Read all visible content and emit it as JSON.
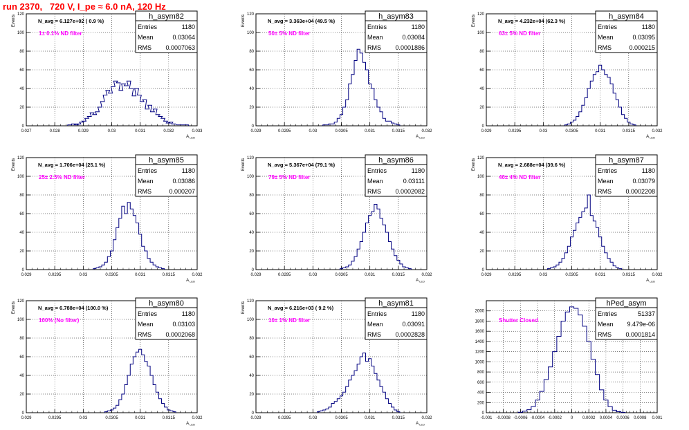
{
  "run_title": "run 2370,   720 V, I_pe ≈ 6.0 nA, 120 Hz",
  "colors": {
    "hist_line": "#000080",
    "annotation": "#ff00ff",
    "title_text": "#ff0000",
    "grid": "#000000"
  },
  "stat_labels": {
    "entries": "Entries",
    "mean": "Mean",
    "rms": "RMS"
  },
  "chart_data": [
    {
      "type": "histogram",
      "name": "h_asym82",
      "title": "N_avg = 6.127e+02 ( 0.9 %)",
      "annotation": "1± 0.1% ND filter",
      "stats": {
        "entries": "1180",
        "mean": "0.03064",
        "rms": "0.0007063"
      },
      "xlabel": "A_LED",
      "ylabel": "Events",
      "grid": true,
      "xlim": [
        0.027,
        0.0335
      ],
      "ylim": [
        0,
        120
      ],
      "xticks": [
        "0.027",
        "0.028",
        "0.029",
        "0.03",
        "0.031",
        "0.032",
        "0.033"
      ],
      "yticks": [
        "0",
        "20",
        "40",
        "60",
        "80",
        "100",
        "120"
      ],
      "bins": {
        "x": [
          0.02865,
          0.0288,
          0.0289,
          0.029,
          0.0291,
          0.0292,
          0.0293,
          0.0294,
          0.0295,
          0.0296,
          0.0297,
          0.0298,
          0.0299,
          0.03,
          0.0301,
          0.0302,
          0.0303,
          0.0304,
          0.0305,
          0.0306,
          0.0307,
          0.0308,
          0.0309,
          0.031,
          0.0311,
          0.0312,
          0.0313,
          0.0314,
          0.0315,
          0.0316,
          0.0317,
          0.0318,
          0.0319,
          0.032,
          0.0321,
          0.0322,
          0.0323,
          0.0324,
          0.0325,
          0.0326,
          0.0328,
          0.0331
        ],
        "y": [
          1,
          2,
          1,
          2,
          4,
          5,
          8,
          10,
          14,
          12,
          15,
          20,
          26,
          33,
          38,
          35,
          42,
          48,
          46,
          38,
          45,
          43,
          48,
          40,
          32,
          40,
          33,
          26,
          28,
          18,
          22,
          15,
          18,
          12,
          10,
          8,
          5,
          3,
          4,
          2,
          1,
          1
        ]
      }
    },
    {
      "type": "histogram",
      "name": "h_asym83",
      "title": "N_avg = 3.363e+04 (49.5 %)",
      "annotation": "50± 5% ND filter",
      "stats": {
        "entries": "1180",
        "mean": "0.03084",
        "rms": "0.0001886"
      },
      "xlabel": "A_LED",
      "ylabel": "Events",
      "grid": true,
      "xlim": [
        0.029,
        0.032
      ],
      "ylim": [
        0,
        120
      ],
      "xticks": [
        "0.029",
        "0.0295",
        "0.03",
        "0.0305",
        "0.031",
        "0.0315",
        "0.032"
      ],
      "yticks": [
        "0",
        "20",
        "40",
        "60",
        "80",
        "100",
        "120"
      ],
      "bins": {
        "x": [
          0.0302,
          0.03025,
          0.0303,
          0.03035,
          0.0304,
          0.03045,
          0.0305,
          0.03055,
          0.0306,
          0.03065,
          0.0307,
          0.03075,
          0.0308,
          0.03085,
          0.0309,
          0.03095,
          0.031,
          0.03105,
          0.0311,
          0.03115,
          0.0312,
          0.03125,
          0.0313,
          0.03135,
          0.0314,
          0.03145,
          0.0315
        ],
        "y": [
          1,
          1,
          2,
          2,
          4,
          8,
          12,
          20,
          28,
          45,
          55,
          70,
          82,
          78,
          68,
          60,
          45,
          40,
          28,
          20,
          15,
          8,
          5,
          5,
          3,
          2,
          1
        ]
      }
    },
    {
      "type": "histogram",
      "name": "h_asym84",
      "title": "N_avg = 4.232e+04 (62.3 %)",
      "annotation": "63± 5% ND filter",
      "stats": {
        "entries": "1180",
        "mean": "0.03095",
        "rms": "0.000215"
      },
      "xlabel": "A_LED",
      "ylabel": "Events",
      "grid": true,
      "xlim": [
        0.029,
        0.032
      ],
      "ylim": [
        0,
        120
      ],
      "xticks": [
        "0.029",
        "0.0295",
        "0.03",
        "0.0305",
        "0.031",
        "0.0315",
        "0.032"
      ],
      "yticks": [
        "0",
        "20",
        "40",
        "60",
        "80",
        "100",
        "120"
      ],
      "bins": {
        "x": [
          0.0304,
          0.03045,
          0.0305,
          0.03055,
          0.0306,
          0.03065,
          0.0307,
          0.03075,
          0.0308,
          0.03085,
          0.0309,
          0.03095,
          0.031,
          0.03105,
          0.0311,
          0.03115,
          0.0312,
          0.03125,
          0.0313,
          0.03135,
          0.0314,
          0.03145,
          0.0315,
          0.03155,
          0.0316
        ],
        "y": [
          1,
          2,
          4,
          6,
          10,
          15,
          22,
          30,
          40,
          48,
          55,
          58,
          65,
          60,
          55,
          52,
          45,
          35,
          28,
          20,
          12,
          8,
          4,
          2,
          1
        ]
      }
    },
    {
      "type": "histogram",
      "name": "h_asym85",
      "title": "N_avg = 1.706e+04 (25.1 %)",
      "annotation": "25± 2.5% ND filter",
      "stats": {
        "entries": "1180",
        "mean": "0.03086",
        "rms": "0.000207"
      },
      "xlabel": "A_LED",
      "ylabel": "Events",
      "grid": true,
      "xlim": [
        0.029,
        0.032
      ],
      "ylim": [
        0,
        120
      ],
      "xticks": [
        "0.029",
        "0.0295",
        "0.03",
        "0.0305",
        "0.031",
        "0.0315",
        "0.032"
      ],
      "yticks": [
        "0",
        "20",
        "40",
        "60",
        "80",
        "100",
        "120"
      ],
      "bins": {
        "x": [
          0.0302,
          0.03025,
          0.0303,
          0.03035,
          0.0304,
          0.03045,
          0.0305,
          0.03055,
          0.0306,
          0.03065,
          0.0307,
          0.03075,
          0.0308,
          0.03085,
          0.0309,
          0.03095,
          0.031,
          0.03105,
          0.0311,
          0.03115,
          0.0312,
          0.03125,
          0.0313,
          0.03135,
          0.0314
        ],
        "y": [
          1,
          2,
          3,
          5,
          8,
          14,
          20,
          32,
          45,
          55,
          68,
          60,
          72,
          65,
          58,
          50,
          38,
          25,
          20,
          12,
          8,
          5,
          3,
          2,
          1
        ]
      }
    },
    {
      "type": "histogram",
      "name": "h_asym86",
      "title": "N_avg = 5.367e+04 (79.1 %)",
      "annotation": "79± 5% ND filter",
      "stats": {
        "entries": "1180",
        "mean": "0.03111",
        "rms": "0.0002082"
      },
      "xlabel": "A_LED",
      "ylabel": "Events",
      "grid": true,
      "xlim": [
        0.029,
        0.032
      ],
      "ylim": [
        0,
        120
      ],
      "xticks": [
        "0.029",
        "0.0295",
        "0.03",
        "0.0305",
        "0.031",
        "0.0315",
        "0.032"
      ],
      "yticks": [
        "0",
        "20",
        "40",
        "60",
        "80",
        "100",
        "120"
      ],
      "bins": {
        "x": [
          0.0305,
          0.03055,
          0.0306,
          0.03065,
          0.0307,
          0.03075,
          0.0308,
          0.03085,
          0.0309,
          0.03095,
          0.031,
          0.03105,
          0.0311,
          0.03115,
          0.0312,
          0.03125,
          0.0313,
          0.03135,
          0.0314,
          0.03145,
          0.0315,
          0.03155,
          0.0316,
          0.03165,
          0.0317
        ],
        "y": [
          1,
          2,
          3,
          5,
          9,
          14,
          22,
          30,
          40,
          50,
          58,
          62,
          70,
          65,
          55,
          48,
          40,
          30,
          22,
          15,
          10,
          6,
          3,
          2,
          1
        ]
      }
    },
    {
      "type": "histogram",
      "name": "h_asym87",
      "title": "N_avg = 2.688e+04 (39.6 %)",
      "annotation": "40± 4% ND filter",
      "stats": {
        "entries": "1180",
        "mean": "0.03079",
        "rms": "0.0002208"
      },
      "xlabel": "A_LED",
      "ylabel": "Events",
      "grid": true,
      "xlim": [
        0.029,
        0.032
      ],
      "ylim": [
        0,
        120
      ],
      "xticks": [
        "0.029",
        "0.0295",
        "0.03",
        "0.0305",
        "0.031",
        "0.0315",
        "0.032"
      ],
      "yticks": [
        "0",
        "20",
        "40",
        "60",
        "80",
        "100",
        "120"
      ],
      "bins": {
        "x": [
          0.0301,
          0.03015,
          0.0302,
          0.03025,
          0.0303,
          0.03035,
          0.0304,
          0.03045,
          0.0305,
          0.03055,
          0.0306,
          0.03065,
          0.0307,
          0.03075,
          0.0308,
          0.03085,
          0.0309,
          0.03095,
          0.031,
          0.03105,
          0.0311,
          0.03115,
          0.0312,
          0.03125,
          0.0313,
          0.03135
        ],
        "y": [
          1,
          2,
          3,
          5,
          8,
          12,
          18,
          25,
          35,
          42,
          50,
          56,
          62,
          66,
          80,
          58,
          52,
          45,
          35,
          25,
          18,
          12,
          8,
          4,
          2,
          1
        ]
      }
    },
    {
      "type": "histogram",
      "name": "h_asym80",
      "title": "N_avg = 6.788e+04 (100.0 %)",
      "annotation": "100% (No filter)",
      "stats": {
        "entries": "1180",
        "mean": "0.03103",
        "rms": "0.0002068"
      },
      "xlabel": "A_LED",
      "ylabel": "Events",
      "grid": true,
      "xlim": [
        0.029,
        0.032
      ],
      "ylim": [
        0,
        120
      ],
      "xticks": [
        "0.029",
        "0.0295",
        "0.03",
        "0.0305",
        "0.031",
        "0.0315",
        "0.032"
      ],
      "yticks": [
        "0",
        "20",
        "40",
        "60",
        "80",
        "100",
        "120"
      ],
      "bins": {
        "x": [
          0.0304,
          0.03045,
          0.0305,
          0.03055,
          0.0306,
          0.03065,
          0.0307,
          0.03075,
          0.0308,
          0.03085,
          0.0309,
          0.03095,
          0.031,
          0.03105,
          0.0311,
          0.03115,
          0.0312,
          0.03125,
          0.0313,
          0.03135,
          0.0314,
          0.03145,
          0.0315,
          0.03155,
          0.0316
        ],
        "y": [
          1,
          2,
          3,
          5,
          8,
          14,
          20,
          30,
          40,
          52,
          60,
          65,
          68,
          62,
          55,
          50,
          40,
          30,
          22,
          15,
          10,
          6,
          3,
          2,
          1
        ]
      }
    },
    {
      "type": "histogram",
      "name": "h_asym81",
      "title": "N_avg = 6.216e+03 ( 9.2 %)",
      "annotation": "10± 1% ND filter",
      "stats": {
        "entries": "1180",
        "mean": "0.03091",
        "rms": "0.0002828"
      },
      "xlabel": "A_LED",
      "ylabel": "Events",
      "grid": true,
      "xlim": [
        0.029,
        0.032
      ],
      "ylim": [
        0,
        120
      ],
      "xticks": [
        "0.029",
        "0.0295",
        "0.03",
        "0.0305",
        "0.031",
        "0.0315",
        "0.032"
      ],
      "yticks": [
        "0",
        "20",
        "40",
        "60",
        "80",
        "100",
        "120"
      ],
      "bins": {
        "x": [
          0.0301,
          0.03015,
          0.0302,
          0.03025,
          0.0303,
          0.03035,
          0.0304,
          0.03045,
          0.0305,
          0.03055,
          0.0306,
          0.03065,
          0.0307,
          0.03075,
          0.0308,
          0.03085,
          0.0309,
          0.03095,
          0.031,
          0.03105,
          0.0311,
          0.03115,
          0.0312,
          0.03125,
          0.0313,
          0.03135,
          0.0314,
          0.03145,
          0.0315
        ],
        "y": [
          1,
          2,
          3,
          4,
          6,
          10,
          12,
          15,
          18,
          22,
          28,
          35,
          40,
          45,
          52,
          60,
          64,
          55,
          58,
          50,
          42,
          35,
          28,
          22,
          15,
          10,
          6,
          3,
          1
        ]
      }
    },
    {
      "type": "histogram",
      "name": "hPed_asym",
      "title": "",
      "annotation": "Shutter Closed",
      "stats": {
        "entries": "51337",
        "mean": "9.479e-06",
        "rms": "0.0001814"
      },
      "xlabel": "",
      "ylabel": "",
      "grid": true,
      "xlim": [
        -0.001,
        0.001
      ],
      "ylim": [
        0,
        2200
      ],
      "xticks": [
        "-0.001",
        "-0.0008",
        "-0.0006",
        "-0.0004",
        "-0.0002",
        "0",
        "0.0002",
        "0.0004",
        "0.0006",
        "0.0008",
        "0.001"
      ],
      "yticks": [
        "0",
        "200",
        "400",
        "600",
        "800",
        "1000",
        "1200",
        "1400",
        "1600",
        "1800",
        "2000"
      ],
      "bins": {
        "x": [
          -0.0006,
          -0.00055,
          -0.0005,
          -0.00045,
          -0.0004,
          -0.00035,
          -0.0003,
          -0.00025,
          -0.0002,
          -0.00015,
          -0.0001,
          -5e-05,
          0,
          5e-05,
          0.0001,
          0.00015,
          0.0002,
          0.00025,
          0.0003,
          0.00035,
          0.0004,
          0.00045,
          0.0005,
          0.00055,
          0.0006
        ],
        "y": [
          10,
          30,
          60,
          120,
          250,
          420,
          650,
          900,
          1200,
          1500,
          1800,
          1980,
          2080,
          2050,
          1920,
          1700,
          1400,
          1050,
          750,
          450,
          250,
          120,
          50,
          20,
          8
        ]
      }
    }
  ]
}
